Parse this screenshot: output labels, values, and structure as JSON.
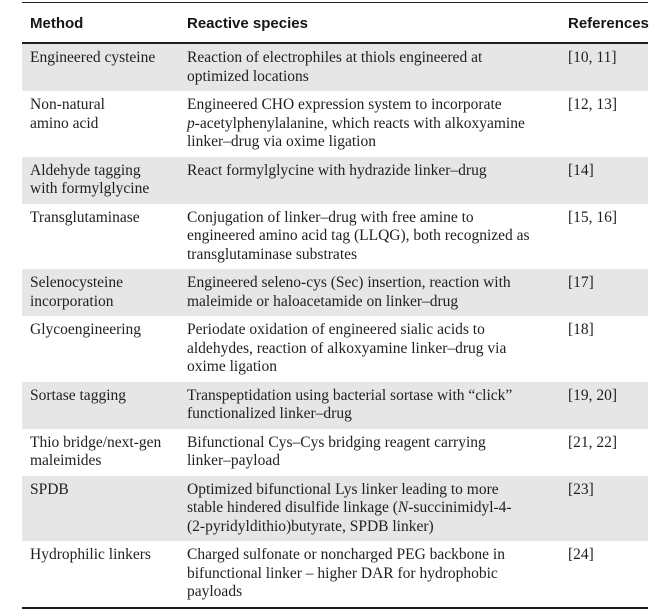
{
  "figure": {
    "colors": {
      "row_shade": "#e6e6e6",
      "rule": "#1c1c1c",
      "text": "#1f1f1f",
      "background": "#ffffff"
    },
    "table": {
      "headers": [
        "Method",
        "Reactive species",
        "References"
      ],
      "rows": [
        {
          "method": "Engineered cysteine",
          "species": [
            {
              "text": "Reaction of electrophiles at thiols engineered at\noptimized locations"
            }
          ],
          "refs": "[10, 11]"
        },
        {
          "method": "Non-natural\namino acid",
          "species": [
            {
              "text": "Engineered CHO expression system to incorporate\n"
            },
            {
              "text": "p",
              "italic": true
            },
            {
              "text": "-acetylphenylalanine, which reacts with alkoxyamine\nlinker–drug via oxime ligation"
            }
          ],
          "refs": "[12, 13]"
        },
        {
          "method": "Aldehyde tagging\nwith formylglycine",
          "species": [
            {
              "text": "React formylglycine with hydrazide linker–drug"
            }
          ],
          "refs": "[14]"
        },
        {
          "method": "Transglutaminase",
          "species": [
            {
              "text": "Conjugation of linker–drug with free amine to\nengineered amino acid tag (LLQG), both recognized as\ntransglutaminase substrates"
            }
          ],
          "refs": "[15, 16]"
        },
        {
          "method": "Selenocysteine\nincorporation",
          "species": [
            {
              "text": "Engineered seleno-cys (Sec) insertion, reaction with\nmaleimide or haloacetamide on linker–drug"
            }
          ],
          "refs": "[17]"
        },
        {
          "method": "Glycoengineering",
          "species": [
            {
              "text": "Periodate oxidation of engineered sialic acids to\naldehydes, reaction of alkoxyamine linker–drug via\noxime ligation"
            }
          ],
          "refs": "[18]"
        },
        {
          "method": "Sortase tagging",
          "species": [
            {
              "text": "Transpeptidation using bacterial sortase with “click”\nfunctionalized linker–drug"
            }
          ],
          "refs": "[19, 20]"
        },
        {
          "method": "Thio bridge/next-gen\nmaleimides",
          "species": [
            {
              "text": "Bifunctional Cys–Cys bridging reagent carrying\nlinker–payload"
            }
          ],
          "refs": "[21, 22]"
        },
        {
          "method": "SPDB",
          "species": [
            {
              "text": "Optimized bifunctional Lys linker leading to more\nstable hindered disulfide linkage ("
            },
            {
              "text": "N",
              "italic": true
            },
            {
              "text": "-succinimidyl-4-\n(2-pyridyldithio)butyrate, SPDB linker)"
            }
          ],
          "refs": "[23]"
        },
        {
          "method": "Hydrophilic linkers",
          "species": [
            {
              "text": "Charged sulfonate or noncharged PEG backbone in\nbifunctional linker – higher DAR for hydrophobic\npayloads"
            }
          ],
          "refs": "[24]"
        }
      ]
    }
  }
}
